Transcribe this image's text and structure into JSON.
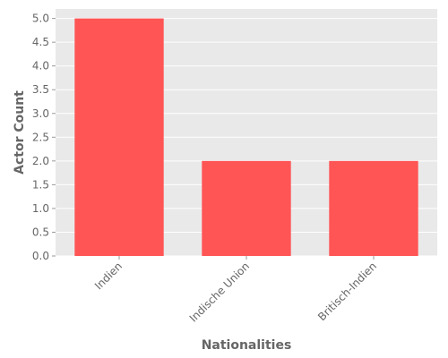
{
  "chart_data": {
    "type": "bar",
    "title": "",
    "xlabel": "Nationalities",
    "ylabel": "Actor Count",
    "categories": [
      "Indien",
      "Indische Union",
      "Britisch-Indien"
    ],
    "values": [
      5,
      2,
      2
    ],
    "ylim": [
      0,
      5.2
    ],
    "yticks": [
      "0.0",
      "0.5",
      "1.0",
      "1.5",
      "2.0",
      "2.5",
      "3.0",
      "3.5",
      "4.0",
      "4.5",
      "5.0"
    ],
    "grid": true,
    "legend": "none",
    "colors": {
      "bar": "#ff5555",
      "plot_background": "#e9e9e9",
      "grid": "#ffffff",
      "text": "#666666"
    }
  }
}
